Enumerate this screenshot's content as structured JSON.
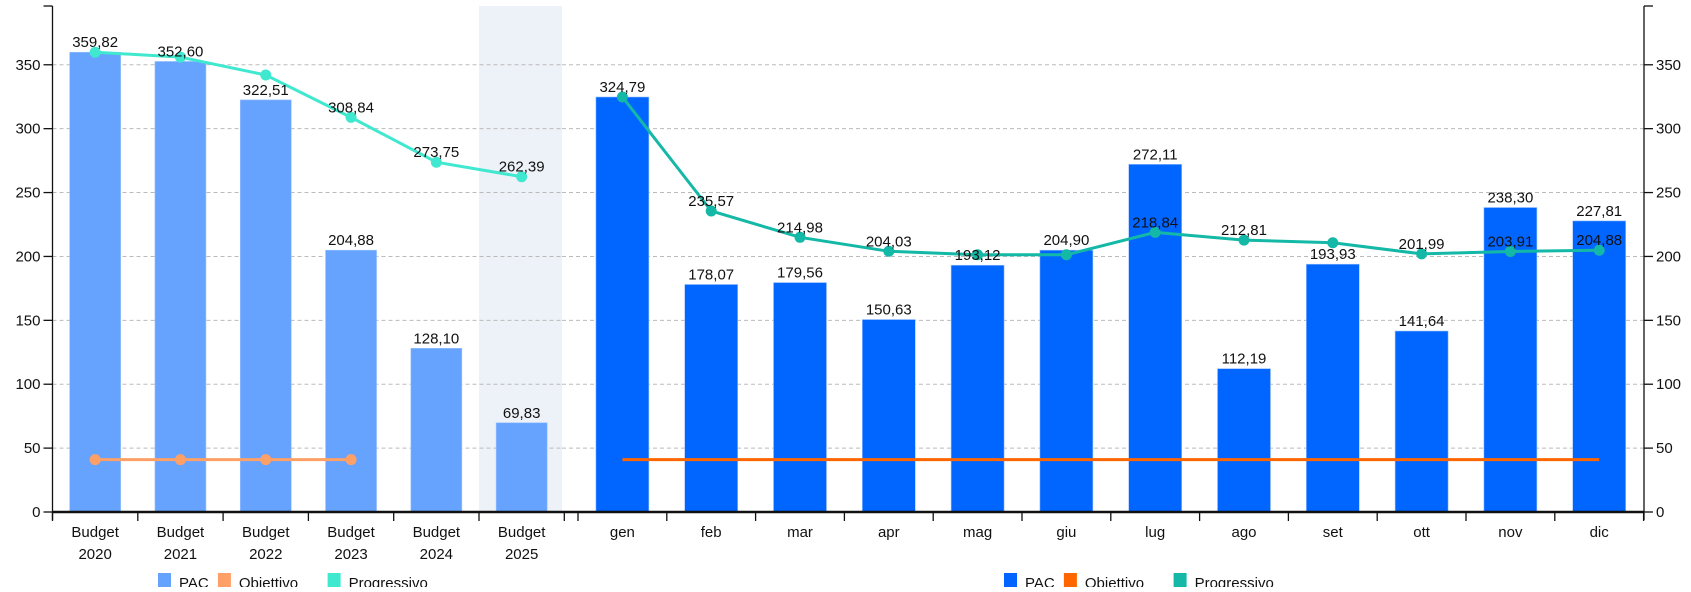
{
  "chart_data": [
    {
      "type": "bar",
      "categories": [
        [
          "Budget",
          "2020"
        ],
        [
          "Budget",
          "2021"
        ],
        [
          "Budget",
          "2022"
        ],
        [
          "Budget",
          "2023"
        ],
        [
          "Budget",
          "2024"
        ],
        [
          "Budget",
          "2025"
        ]
      ],
      "ylim": [
        0,
        396
      ],
      "yticks": [
        "0",
        "50",
        "100",
        "150",
        "200",
        "250",
        "300",
        "350"
      ],
      "yaxis_side": "left",
      "grid": true,
      "highlighted_category": "Budget 2025",
      "legend_placement": "bottom-center",
      "series": [
        {
          "name": "PAC",
          "kind": "bar",
          "color": "#66a3ff",
          "values": [
            359.82,
            352.6,
            322.51,
            204.88,
            128.1,
            69.83
          ],
          "labels": [
            "359,82",
            "352,60",
            "322,51",
            "204,88",
            "128,10",
            "69,83"
          ]
        },
        {
          "name": "Obiettivo",
          "kind": "line",
          "color": "#ffa066",
          "values": [
            41,
            41,
            41,
            41,
            null,
            null
          ]
        },
        {
          "name": "Progressivo",
          "kind": "line",
          "color": "#40e8d0",
          "values": [
            359.82,
            356,
            342,
            308.84,
            273.75,
            262.39
          ],
          "labels": [
            "",
            "",
            "",
            "308,84",
            "273,75",
            "262,39"
          ]
        }
      ]
    },
    {
      "type": "bar",
      "categories": [
        [
          "gen"
        ],
        [
          "feb"
        ],
        [
          "mar"
        ],
        [
          "apr"
        ],
        [
          "mag"
        ],
        [
          "giu"
        ],
        [
          "lug"
        ],
        [
          "ago"
        ],
        [
          "set"
        ],
        [
          "ott"
        ],
        [
          "nov"
        ],
        [
          "dic"
        ]
      ],
      "ylim": [
        0,
        396
      ],
      "yticks": [
        "0",
        "50",
        "100",
        "150",
        "200",
        "250",
        "300",
        "350"
      ],
      "yaxis_side": "right",
      "grid": true,
      "legend_placement": "bottom-center",
      "series": [
        {
          "name": "PAC",
          "kind": "bar",
          "color": "#0066ff",
          "values": [
            324.79,
            178.07,
            179.56,
            150.63,
            193.12,
            204.9,
            272.11,
            112.19,
            193.93,
            141.64,
            238.3,
            227.81
          ],
          "labels": [
            "324,79",
            "178,07",
            "179,56",
            "150,63",
            "193,12",
            "204,90",
            "272,11",
            "112,19",
            "193,93",
            "141,64",
            "238,30",
            "227,81"
          ]
        },
        {
          "name": "Obiettivo",
          "kind": "line",
          "color": "#ff6600",
          "markers": false,
          "values": [
            41,
            41,
            41,
            41,
            41,
            41,
            41,
            41,
            41,
            41,
            41,
            41
          ]
        },
        {
          "name": "Progressivo",
          "kind": "line",
          "color": "#14b8a6",
          "values": [
            324.79,
            235.57,
            214.98,
            204.03,
            201.3,
            201.3,
            218.84,
            212.81,
            210.7,
            201.99,
            203.91,
            204.88
          ],
          "labels": [
            "",
            "235,57",
            "214,98",
            "204,03",
            "",
            "",
            "218,84",
            "212,81",
            "",
            "201,99",
            "203,91",
            "204,88"
          ]
        }
      ]
    }
  ]
}
